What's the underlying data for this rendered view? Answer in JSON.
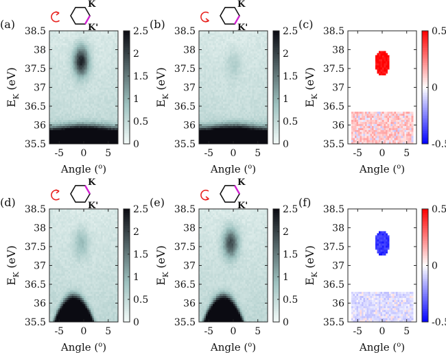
{
  "figure": {
    "layout": "2x3 panel grid",
    "ylabel_main": "E",
    "ylabel_sub": "K",
    "ylabel_unit": " (eV)",
    "xlabel": "Angle (",
    "xlabel_sup": "o",
    "xlabel_close": ")",
    "k_label": "K",
    "kp_label": "K'"
  },
  "colors": {
    "intensity_low": "#f4fbf9",
    "intensity_mid": "#9ec2c0",
    "intensity_high": "#0b0b12",
    "diff_neg": "#0000ff",
    "diff_zero": "#ffffff",
    "diff_pos": "#ff0000",
    "arrow": "#e8221f",
    "k_marker": "#d020d0"
  },
  "chart_data": [
    {
      "panel": "(a)",
      "type": "heatmap",
      "colormap": "intensity",
      "polarization": "counter-clockwise",
      "valley_marker": "K'",
      "xlim": [
        -7,
        7
      ],
      "ylim": [
        35.5,
        38.5
      ],
      "xticks": [
        -5,
        0,
        5
      ],
      "yticks": [
        35.5,
        36,
        36.5,
        37,
        37.5,
        38,
        38.5
      ],
      "colorbar": {
        "range": [
          0,
          2.5
        ],
        "ticks": [
          "0",
          "0.5",
          "1",
          "1.5",
          "2",
          "2.5"
        ]
      },
      "features": {
        "spot_center": [
          -0.5,
          37.7
        ],
        "spot_amplitude": 2.0,
        "bottom_band_top_eV": 35.95
      }
    },
    {
      "panel": "(b)",
      "type": "heatmap",
      "colormap": "intensity",
      "polarization": "clockwise",
      "valley_marker": "K'",
      "xlim": [
        -7,
        7
      ],
      "ylim": [
        35.5,
        38.5
      ],
      "xticks": [
        -5,
        0,
        5
      ],
      "yticks": [
        35.5,
        36,
        36.5,
        37,
        37.5,
        38,
        38.5
      ],
      "colorbar": {
        "range": [
          0,
          2.5
        ],
        "ticks": [
          "0",
          "0.5",
          "1",
          "1.5",
          "2",
          "2.5"
        ]
      },
      "features": {
        "spot_center": [
          0,
          37.6
        ],
        "spot_amplitude": 0.35,
        "bottom_band_top_eV": 35.95
      }
    },
    {
      "panel": "(c)",
      "type": "heatmap",
      "colormap": "difference",
      "xlim": [
        -7,
        7
      ],
      "ylim": [
        35.5,
        38.5
      ],
      "xticks": [
        -5,
        0,
        5
      ],
      "yticks": [
        35.5,
        36,
        36.5,
        37,
        37.5,
        38,
        38.5
      ],
      "colorbar": {
        "range": [
          -0.5,
          0.5
        ],
        "ticks": [
          "-0.5",
          "0",
          "0.5"
        ]
      },
      "features": {
        "spot_center": [
          0,
          37.65
        ],
        "spot_value": 0.5,
        "band_range_eV": [
          35.5,
          36.35
        ],
        "band_value": 0.12
      }
    },
    {
      "panel": "(d)",
      "type": "heatmap",
      "colormap": "intensity",
      "polarization": "counter-clockwise",
      "valley_marker": "K",
      "xlim": [
        -7,
        7
      ],
      "ylim": [
        35.5,
        38.5
      ],
      "xticks": [
        -5,
        0,
        5
      ],
      "yticks": [
        35.5,
        36,
        36.5,
        37,
        37.5,
        38,
        38.5
      ],
      "colorbar": {
        "range": [
          0,
          2.5
        ],
        "ticks": [
          "0",
          "0.5",
          "1",
          "1.5",
          "2",
          "2.5"
        ]
      },
      "features": {
        "spot_center": [
          -0.5,
          37.6
        ],
        "spot_amplitude": 0.6,
        "bottom_dome_peak": [
          -2,
          36.2
        ]
      }
    },
    {
      "panel": "(e)",
      "type": "heatmap",
      "colormap": "intensity",
      "polarization": "clockwise",
      "valley_marker": "K",
      "xlim": [
        -7,
        7
      ],
      "ylim": [
        35.5,
        38.5
      ],
      "xticks": [
        -5,
        0,
        5
      ],
      "yticks": [
        35.5,
        36,
        36.5,
        37,
        37.5,
        38,
        38.5
      ],
      "colorbar": {
        "range": [
          0,
          2.5
        ],
        "ticks": [
          "0",
          "0.5",
          "1",
          "1.5",
          "2",
          "2.5"
        ]
      },
      "features": {
        "spot_center": [
          -0.5,
          37.6
        ],
        "spot_amplitude": 1.6,
        "bottom_dome_peak": [
          -2,
          36.2
        ]
      }
    },
    {
      "panel": "(f)",
      "type": "heatmap",
      "colormap": "difference",
      "xlim": [
        -7,
        7
      ],
      "ylim": [
        35.5,
        38.5
      ],
      "xticks": [
        -5,
        0,
        5
      ],
      "yticks": [
        35.5,
        36,
        36.5,
        37,
        37.5,
        38,
        38.5
      ],
      "colorbar": {
        "range": [
          -0.5,
          0.5
        ],
        "ticks": [
          "-0.5",
          "0",
          "0.5"
        ]
      },
      "features": {
        "spot_center": [
          0,
          37.6
        ],
        "spot_value": -0.4,
        "band_range_eV": [
          35.5,
          36.3
        ],
        "band_value": -0.08
      }
    }
  ]
}
